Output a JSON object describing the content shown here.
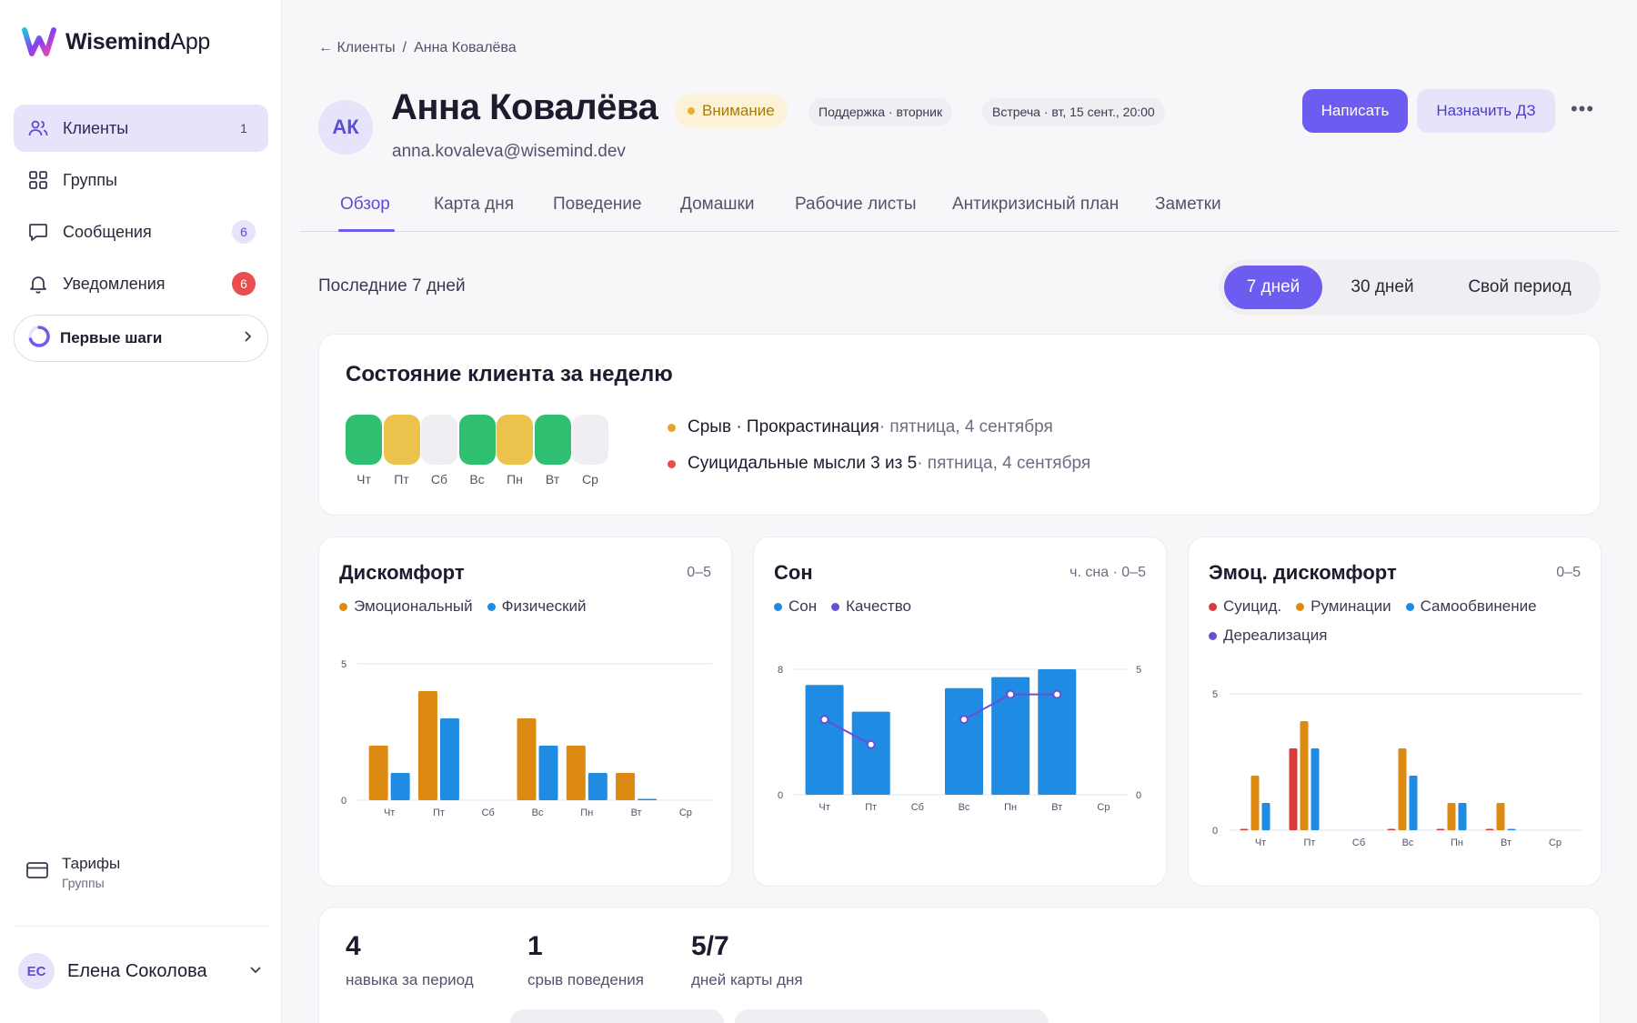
{
  "app": {
    "logo_bold": "Wisemind",
    "logo_light": "App"
  },
  "sidebar": {
    "items": [
      {
        "label": "Клиенты",
        "badge": "1"
      },
      {
        "label": "Группы",
        "badge": ""
      },
      {
        "label": "Сообщения",
        "badge": "6"
      },
      {
        "label": "Уведомления",
        "badge": "6"
      }
    ],
    "first_steps": "Первые шаги",
    "tariffs": {
      "title": "Тарифы",
      "subtitle": "Группы"
    },
    "user": {
      "initials": "ЕС",
      "name": "Елена Соколова"
    }
  },
  "breadcrumb": {
    "back": "Клиенты",
    "separator": "/",
    "current": "Анна Ковалёва"
  },
  "client": {
    "initials": "АК",
    "name": "Анна Ковалёва",
    "email": "anna.kovaleva@wisemind.dev",
    "status": "Внимание",
    "tag_support": "Поддержка · вторник",
    "tag_meeting": "Встреча · вт, 15 сент., 20:00"
  },
  "actions": {
    "write": "Написать",
    "assign": "Назначить ДЗ",
    "more": "•••"
  },
  "tabs": [
    "Обзор",
    "Карта дня",
    "Поведение",
    "Домашки",
    "Рабочие листы",
    "Антикризисный план",
    "Заметки"
  ],
  "period": {
    "label": "Последние 7 дней",
    "options": [
      "7 дней",
      "30 дней",
      "Свой период"
    ],
    "selected": "7 дней"
  },
  "week_state": {
    "title": "Состояние клиента за неделю",
    "days": [
      {
        "label": "Чт",
        "status": "good"
      },
      {
        "label": "Пт",
        "status": "warn"
      },
      {
        "label": "Сб",
        "status": "none"
      },
      {
        "label": "Вс",
        "status": "good"
      },
      {
        "label": "Пн",
        "status": "warn"
      },
      {
        "label": "Вт",
        "status": "good"
      },
      {
        "label": "Ср",
        "status": "none"
      }
    ],
    "events": [
      {
        "main": "Срыв · Прокрастинация",
        "sub": " · пятница, 4 сентября",
        "color": "#e8a22e"
      },
      {
        "main": "Суицидальные мысли 3 из 5",
        "sub": " · пятница, 4 сентября",
        "color": "#ea4d4d"
      }
    ]
  },
  "colors": {
    "accent": "#6d5cf0",
    "good": "#2fbf71",
    "warn": "#ebc24b",
    "none": "#efeff3",
    "orange": "#dc8a12",
    "blue": "#1f8be3",
    "red": "#d93a3a",
    "purple": "#6a4fd0"
  },
  "chart_data": [
    {
      "type": "bar",
      "title": "Дискомфорт",
      "range_label": "0–5",
      "categories": [
        "Чт",
        "Пт",
        "Сб",
        "Вс",
        "Пн",
        "Вт",
        "Ср"
      ],
      "ylim": [
        0,
        5
      ],
      "yticks": [
        "5",
        "0"
      ],
      "series": [
        {
          "name": "Эмоциональный",
          "color": "#dc8a12",
          "values": [
            2,
            4,
            0,
            3,
            2,
            1,
            0
          ]
        },
        {
          "name": "Физический",
          "color": "#1f8be3",
          "values": [
            1,
            3,
            0,
            2,
            1,
            0.05,
            0
          ]
        }
      ]
    },
    {
      "type": "bar",
      "title": "Сон",
      "range_label": "ч. сна · 0–5",
      "categories": [
        "Чт",
        "Пт",
        "Сб",
        "Вс",
        "Пн",
        "Вт",
        "Ср"
      ],
      "ylim": [
        0,
        8
      ],
      "y2lim": [
        0,
        5
      ],
      "yticks": [
        "8",
        "0"
      ],
      "y2ticks": [
        "5",
        "0"
      ],
      "series": [
        {
          "name": "Сон",
          "color": "#1f8be3",
          "type": "bar",
          "values": [
            7,
            5.3,
            0,
            6.8,
            7.5,
            8,
            0
          ]
        },
        {
          "name": "Качество",
          "color": "#6a4fd0",
          "type": "line",
          "values": [
            3,
            2,
            null,
            3,
            4,
            4,
            null
          ]
        }
      ]
    },
    {
      "type": "bar",
      "title": "Эмоц. дискомфорт",
      "range_label": "0–5",
      "categories": [
        "Чт",
        "Пт",
        "Сб",
        "Вс",
        "Пн",
        "Вт",
        "Ср"
      ],
      "ylim": [
        0,
        5
      ],
      "yticks": [
        "5",
        "0"
      ],
      "series": [
        {
          "name": "Суицид.",
          "color": "#d93a3a",
          "values": [
            0.05,
            3,
            0,
            0.05,
            0.05,
            0.05,
            0
          ]
        },
        {
          "name": "Руминации",
          "color": "#dc8a12",
          "values": [
            2,
            4,
            0,
            3,
            1,
            1,
            0
          ]
        },
        {
          "name": "Самообвинение",
          "color": "#1f8be3",
          "values": [
            1,
            3,
            0,
            2,
            1,
            0.05,
            0
          ]
        },
        {
          "name": "Дереализация",
          "color": "#6a4fd0",
          "values": [
            0,
            0,
            0,
            0,
            0,
            0,
            0
          ]
        }
      ]
    }
  ],
  "stats": [
    {
      "value": "4",
      "label": "навыка за период"
    },
    {
      "value": "1",
      "label": "срыв поведения"
    },
    {
      "value": "5/7",
      "label": "дней карты дня"
    }
  ]
}
